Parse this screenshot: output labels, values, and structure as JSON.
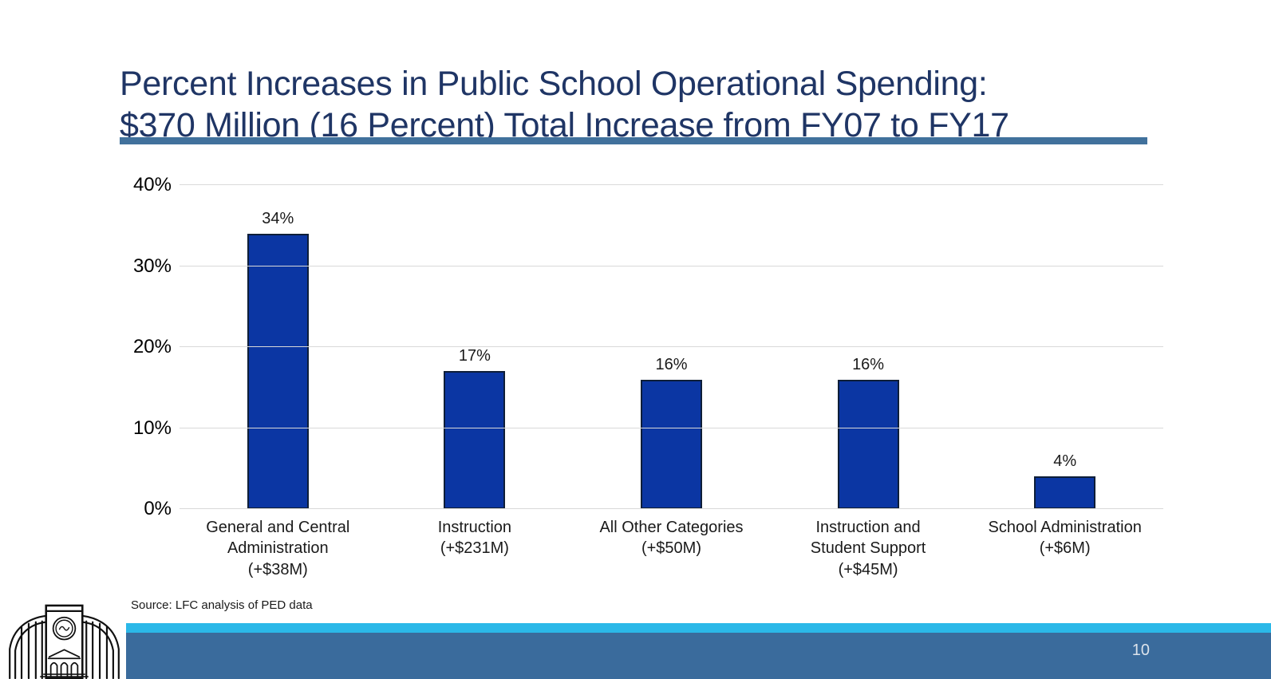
{
  "slide": {
    "title_lines": [
      "Percent Increases in Public School Operational Spending:",
      "$370 Million (16 Percent) Total Increase from FY07 to FY17"
    ],
    "source": "Source: LFC analysis of PED data",
    "page_number": "10",
    "logo_name": "lfc-capitol-building-logo"
  },
  "colors": {
    "title": "#1F3565",
    "divider": "#41719C",
    "bar_fill": "#0B36A3",
    "bar_border": "#0E1E38",
    "gridline": "#D9D9D9",
    "axis_text": "#000000",
    "footer_stripe": "#2BB8E8",
    "footer_bar": "#3A6B9C",
    "page_number_text": "#DCE3EB"
  },
  "chart_data": {
    "type": "bar",
    "title": "Percent Increases in Public School Operational Spending: $370 Million (16 Percent) Total Increase from FY07 to FY17",
    "categories": [
      "General and Central Administration (+$38M)",
      "Instruction (+$231M)",
      "All Other Categories (+$50M)",
      "Instruction and Student Support (+$45M)",
      "School Administration (+$6M)"
    ],
    "category_display": [
      "General and Central\nAdministration\n(+$38M)",
      "Instruction\n(+$231M)",
      "All Other Categories\n(+$50M)",
      "Instruction and\nStudent Support\n(+$45M)",
      "School Administration\n(+$6M)"
    ],
    "values": [
      34,
      17,
      16,
      16,
      4
    ],
    "data_labels": [
      "34%",
      "17%",
      "16%",
      "16%",
      "4%"
    ],
    "xlabel": "",
    "ylabel": "",
    "ylim": [
      0,
      40
    ],
    "yticks": [
      0,
      10,
      20,
      30,
      40
    ],
    "ytick_labels": [
      "0%",
      "10%",
      "20%",
      "30%",
      "40%"
    ],
    "grid": "horizontal",
    "legend": "none"
  }
}
